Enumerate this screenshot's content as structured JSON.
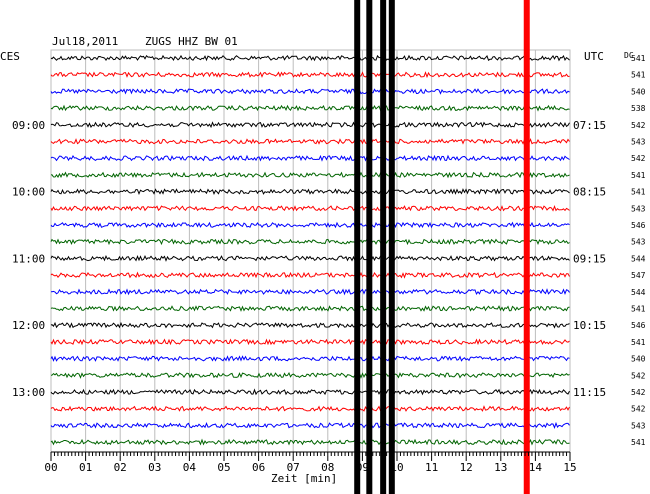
{
  "header": {
    "date": "Jul18,2011",
    "station": "ZUGS HHZ BW 01",
    "left_tz": "CES",
    "right_tz": "UTC",
    "dc_label": "DC"
  },
  "chart_data": {
    "type": "line",
    "title": "Jul18,2011   ZUGS HHZ BW 01",
    "xlabel": "Zeit [min]",
    "xlim": [
      0,
      15
    ],
    "x_ticks": [
      "00",
      "01",
      "02",
      "03",
      "04",
      "05",
      "06",
      "07",
      "08",
      "09",
      "10",
      "11",
      "12",
      "13",
      "14",
      "15"
    ],
    "trace_colors": [
      "#000000",
      "#ff0000",
      "#0000ff",
      "#006400"
    ],
    "trace_count": 24,
    "left_time_labels": [
      {
        "trace": 4,
        "label": "09:00"
      },
      {
        "trace": 8,
        "label": "10:00"
      },
      {
        "trace": 12,
        "label": "11:00"
      },
      {
        "trace": 16,
        "label": "12:00"
      },
      {
        "trace": 20,
        "label": "13:00"
      }
    ],
    "right_time_labels": [
      {
        "trace": 4,
        "label": "07:15"
      },
      {
        "trace": 8,
        "label": "08:15"
      },
      {
        "trace": 12,
        "label": "09:15"
      },
      {
        "trace": 16,
        "label": "10:15"
      },
      {
        "trace": 20,
        "label": "11:15"
      }
    ],
    "dc_values": [
      "541",
      "541",
      "540",
      "538",
      "542",
      "543",
      "542",
      "541",
      "541",
      "543",
      "546",
      "543",
      "544",
      "547",
      "544",
      "541",
      "546",
      "541",
      "540",
      "542",
      "542",
      "542",
      "543",
      "541"
    ],
    "events": [
      {
        "minute": 8.85,
        "color": "#000000"
      },
      {
        "minute": 9.2,
        "color": "#000000"
      },
      {
        "minute": 9.6,
        "color": "#000000"
      },
      {
        "minute": 9.85,
        "color": "#000000"
      },
      {
        "minute": 13.75,
        "color": "#ff0000"
      }
    ]
  }
}
